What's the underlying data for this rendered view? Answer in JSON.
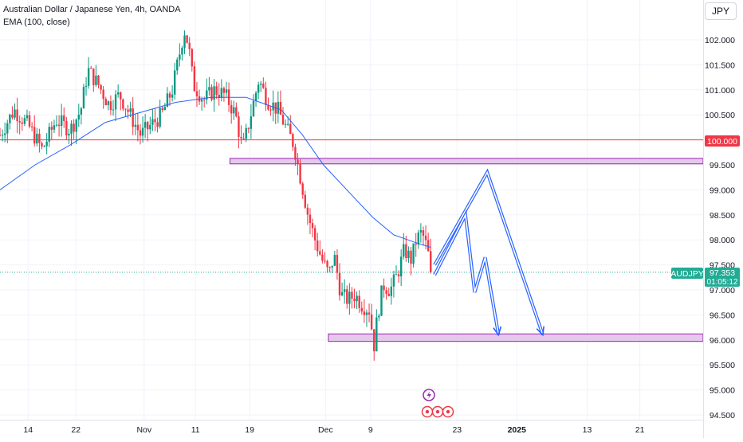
{
  "legend": {
    "title": "Australian Dollar / Japanese Yen, 4h, OANDA",
    "indicator": "EMA (100, close)"
  },
  "currency_label": "JPY",
  "price_label": {
    "symbol": "AUDJPY",
    "price": "97.353",
    "countdown": "01:05:12",
    "value": 97.353,
    "color": "#22ab94"
  },
  "level_label": {
    "text": "100.000",
    "value": 100.0,
    "color": "#f23645"
  },
  "colors": {
    "up": "#089981",
    "down": "#f23645",
    "ema": "#2962ff",
    "zone_fill": "#e1bee7",
    "zone_stroke": "#9c27b0",
    "arrow": "#2962ff"
  },
  "chart_data": {
    "type": "candlestick",
    "symbol": "AUDJPY",
    "interval": "4h",
    "ylim": [
      94.3,
      103.0
    ],
    "y_ticks": [
      {
        "value": 102.0,
        "label": "102.000"
      },
      {
        "value": 101.5,
        "label": "101.500"
      },
      {
        "value": 101.0,
        "label": "101.000"
      },
      {
        "value": 100.5,
        "label": "100.500"
      },
      {
        "value": 99.5,
        "label": "99.500"
      },
      {
        "value": 99.0,
        "label": "99.000"
      },
      {
        "value": 98.5,
        "label": "98.500"
      },
      {
        "value": 98.0,
        "label": "98.000"
      },
      {
        "value": 97.5,
        "label": "97.500"
      },
      {
        "value": 97.0,
        "label": "97.000"
      },
      {
        "value": 96.5,
        "label": "96.500"
      },
      {
        "value": 96.0,
        "label": "96.000"
      },
      {
        "value": 95.5,
        "label": "95.500"
      },
      {
        "value": 95.0,
        "label": "95.000"
      },
      {
        "value": 94.5,
        "label": "94.500"
      }
    ],
    "x_ticks": [
      {
        "t": 0.04,
        "label": "14",
        "bold": false
      },
      {
        "t": 0.108,
        "label": "22",
        "bold": false
      },
      {
        "t": 0.205,
        "label": "Nov",
        "bold": false
      },
      {
        "t": 0.278,
        "label": "11",
        "bold": false
      },
      {
        "t": 0.355,
        "label": "19",
        "bold": false
      },
      {
        "t": 0.463,
        "label": "Dec",
        "bold": false
      },
      {
        "t": 0.527,
        "label": "9",
        "bold": false
      },
      {
        "t": 0.65,
        "label": "23",
        "bold": false
      },
      {
        "t": 0.735,
        "label": "2025",
        "bold": true
      },
      {
        "t": 0.835,
        "label": "13",
        "bold": false
      },
      {
        "t": 0.91,
        "label": "21",
        "bold": false
      }
    ],
    "price_path": [
      [
        0.0,
        100.1
      ],
      [
        0.02,
        100.6
      ],
      [
        0.04,
        100.3
      ],
      [
        0.06,
        99.8
      ],
      [
        0.08,
        100.4
      ],
      [
        0.1,
        100.2
      ],
      [
        0.115,
        100.6
      ],
      [
        0.125,
        101.4
      ],
      [
        0.14,
        101.1
      ],
      [
        0.155,
        100.7
      ],
      [
        0.17,
        100.9
      ],
      [
        0.185,
        100.5
      ],
      [
        0.2,
        100.1
      ],
      [
        0.215,
        100.3
      ],
      [
        0.23,
        100.5
      ],
      [
        0.245,
        101.0
      ],
      [
        0.255,
        101.7
      ],
      [
        0.262,
        102.2
      ],
      [
        0.268,
        101.9
      ],
      [
        0.275,
        101.1
      ],
      [
        0.29,
        100.8
      ],
      [
        0.305,
        101.0
      ],
      [
        0.32,
        100.9
      ],
      [
        0.335,
        100.5
      ],
      [
        0.345,
        99.8
      ],
      [
        0.355,
        100.4
      ],
      [
        0.368,
        101.2
      ],
      [
        0.38,
        100.8
      ],
      [
        0.395,
        100.6
      ],
      [
        0.405,
        100.3
      ],
      [
        0.418,
        99.9
      ],
      [
        0.428,
        99.2
      ],
      [
        0.438,
        98.5
      ],
      [
        0.448,
        98.0
      ],
      [
        0.458,
        97.6
      ],
      [
        0.468,
        97.3
      ],
      [
        0.475,
        97.7
      ],
      [
        0.485,
        96.9
      ],
      [
        0.495,
        96.8
      ],
      [
        0.505,
        96.9
      ],
      [
        0.515,
        96.7
      ],
      [
        0.525,
        96.6
      ],
      [
        0.532,
        95.9
      ],
      [
        0.537,
        96.5
      ],
      [
        0.545,
        97.1
      ],
      [
        0.555,
        97.0
      ],
      [
        0.565,
        97.3
      ],
      [
        0.575,
        97.8
      ],
      [
        0.585,
        97.6
      ],
      [
        0.592,
        98.0
      ],
      [
        0.6,
        98.15
      ],
      [
        0.608,
        97.8
      ],
      [
        0.613,
        97.353
      ]
    ],
    "ema_path": [
      [
        0.0,
        99.0
      ],
      [
        0.05,
        99.5
      ],
      [
        0.1,
        99.9
      ],
      [
        0.15,
        100.35
      ],
      [
        0.2,
        100.55
      ],
      [
        0.25,
        100.75
      ],
      [
        0.3,
        100.85
      ],
      [
        0.35,
        100.85
      ],
      [
        0.4,
        100.6
      ],
      [
        0.43,
        100.1
      ],
      [
        0.46,
        99.5
      ],
      [
        0.5,
        98.9
      ],
      [
        0.53,
        98.45
      ],
      [
        0.56,
        98.1
      ],
      [
        0.59,
        97.95
      ],
      [
        0.613,
        97.85
      ]
    ],
    "horizontal_level": 100.0,
    "zones": [
      {
        "t_start": 0.327,
        "y_top": 99.63,
        "y_bottom": 99.52
      },
      {
        "t_start": 0.467,
        "y_top": 96.12,
        "y_bottom": 95.97
      }
    ],
    "projection_arrows": [
      [
        [
          0.618,
          97.5
        ],
        [
          0.693,
          99.35
        ],
        [
          0.772,
          96.1
        ]
      ],
      [
        [
          0.618,
          97.3
        ],
        [
          0.662,
          98.5
        ],
        [
          0.675,
          96.95
        ],
        [
          0.69,
          97.65
        ],
        [
          0.709,
          96.1
        ]
      ]
    ]
  }
}
